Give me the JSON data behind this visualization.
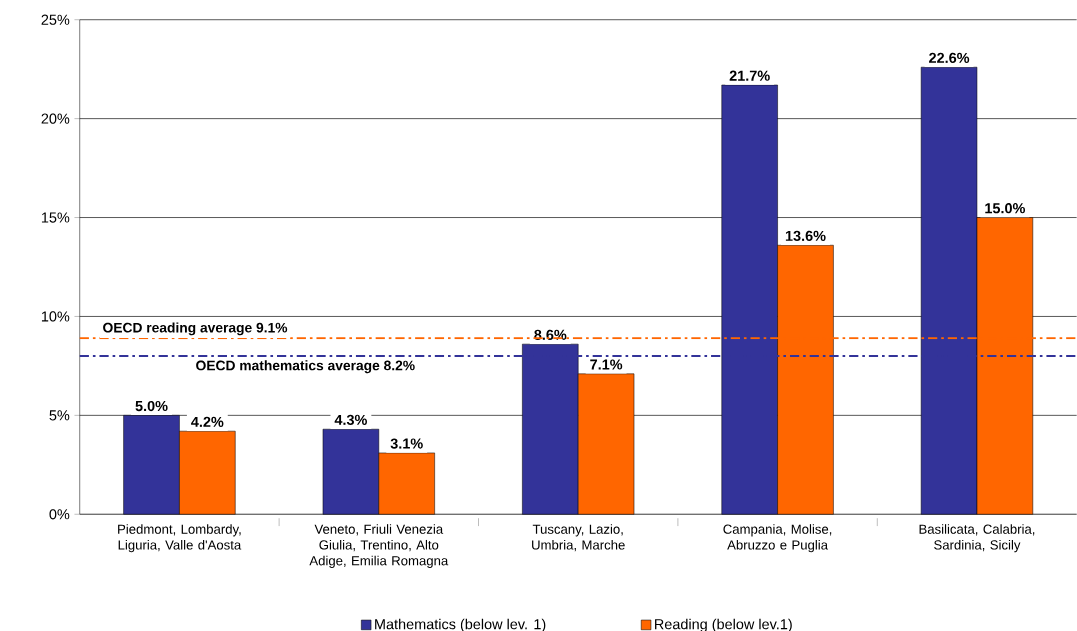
{
  "chart_data": {
    "type": "bar",
    "categories": [
      "Piedmont, Lombardy, Liguria, Valle d'Aosta",
      "Veneto, Friuli Venezia Giulia, Trentino, Alto Adige, Emilia Romagna",
      "Tuscany, Lazio, Umbria, Marche",
      "Campania, Molise, Abruzzo e Puglia",
      "Basilicata, Calabria, Sardinia, Sicily"
    ],
    "series": [
      {
        "name": "Mathematics (below lev. 1)",
        "color": "#333399",
        "values": [
          5.0,
          4.3,
          8.6,
          21.7,
          22.6
        ],
        "value_labels": [
          "5.0%",
          "4.3%",
          "8.6%",
          "21.7%",
          "22.6%"
        ]
      },
      {
        "name": "Reading (below lev.1)",
        "color": "#ff6600",
        "values": [
          4.2,
          3.1,
          7.1,
          13.6,
          15.0
        ],
        "value_labels": [
          "4.2%",
          "3.1%",
          "7.1%",
          "13.6%",
          "15.0%"
        ]
      }
    ],
    "ylim": [
      0,
      25
    ],
    "yticks": [
      {
        "value": 0,
        "label": "0%"
      },
      {
        "value": 5,
        "label": "5%"
      },
      {
        "value": 10,
        "label": "10%"
      },
      {
        "value": 15,
        "label": "15%"
      },
      {
        "value": 20,
        "label": "20%"
      },
      {
        "value": 25,
        "label": "25%"
      }
    ],
    "grid": "y",
    "legend": "bottom",
    "ref_lines": [
      {
        "axis": "y",
        "value": 8.9,
        "label": "OECD reading average 9.1%",
        "color": "#ff6600",
        "line_style": "dashdot"
      },
      {
        "axis": "y",
        "value": 8.0,
        "label": "OECD mathematics average 8.2%",
        "color": "#333399",
        "line_style": "dashdot"
      }
    ]
  }
}
